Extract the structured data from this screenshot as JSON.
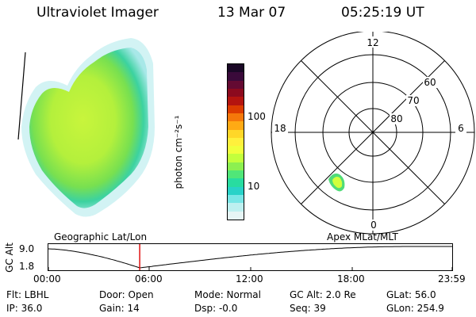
{
  "header": {
    "title": "Ultraviolet Imager",
    "date": "13 Mar 07",
    "time": "05:25:19 UT"
  },
  "colorbar": {
    "label": "photon cm⁻²s⁻¹",
    "ticks": [
      "100",
      "10"
    ],
    "colors": [
      "#1a0826",
      "#3a0a3a",
      "#640a32",
      "#8c0a1e",
      "#b4140f",
      "#dc3c00",
      "#f5780a",
      "#ffaa14",
      "#ffd728",
      "#fff03c",
      "#f0ff3c",
      "#c3ff3c",
      "#8cf050",
      "#50e678",
      "#28dca0",
      "#28d2c8",
      "#78e6e6",
      "#bef0f0",
      "#e6f5f5"
    ]
  },
  "polar": {
    "mlt_labels": {
      "top": "12",
      "left": "18",
      "right": "6",
      "bottom": "0"
    },
    "lat_labels": [
      "60",
      "70",
      "80"
    ]
  },
  "timeline": {
    "left_label": "Geographic Lat/Lon",
    "right_label": "Apex MLat/MLT",
    "y_axis_label": "GC Alt",
    "y_ticks": [
      "9.0",
      "1.8"
    ],
    "x_ticks": [
      "00:00",
      "06:00",
      "12:00",
      "18:00",
      "23:59"
    ],
    "current_marker_time": "05:25"
  },
  "footer": {
    "row1": {
      "flt": "Flt: LBHL",
      "door": "Door: Open",
      "mode": "Mode: Normal",
      "gcalt": "GC Alt: 2.0 Re",
      "glat": "GLat:  56.0"
    },
    "row2": {
      "ip": "IP: 36.0",
      "gain": "Gain: 14",
      "dsp": "Dsp:   -0.0",
      "seq": "Seq: 39",
      "glon": "GLon: 254.9"
    }
  }
}
